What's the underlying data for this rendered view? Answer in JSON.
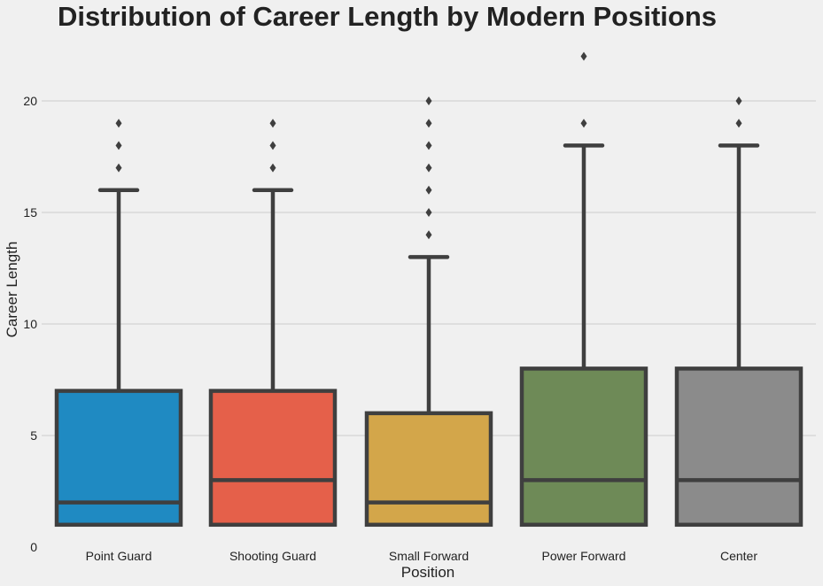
{
  "chart_data": {
    "type": "box",
    "title": "Distribution of Career Length by Modern Positions",
    "xlabel": "Position",
    "ylabel": "Career Length",
    "ylim": [
      0,
      22.5
    ],
    "yticks": [
      0,
      5,
      10,
      15,
      20
    ],
    "grid": true,
    "categories": [
      "Point Guard",
      "Shooting Guard",
      "Small Forward",
      "Power Forward",
      "Center"
    ],
    "boxes": [
      {
        "category": "Point Guard",
        "color": "#1f8ac2",
        "whisker_low": 1,
        "q1": 1,
        "median": 2,
        "q3": 7,
        "whisker_high": 16,
        "outliers": [
          17,
          18,
          19
        ]
      },
      {
        "category": "Shooting Guard",
        "color": "#e5604a",
        "whisker_low": 1,
        "q1": 1,
        "median": 3,
        "q3": 7,
        "whisker_high": 16,
        "outliers": [
          17,
          18,
          19
        ]
      },
      {
        "category": "Small Forward",
        "color": "#d3a64a",
        "whisker_low": 1,
        "q1": 1,
        "median": 2,
        "q3": 6,
        "whisker_high": 13,
        "outliers": [
          14,
          15,
          16,
          17,
          18,
          19,
          20
        ]
      },
      {
        "category": "Power Forward",
        "color": "#6e8a57",
        "whisker_low": 1,
        "q1": 1,
        "median": 3,
        "q3": 8,
        "whisker_high": 18,
        "outliers": [
          19,
          22
        ]
      },
      {
        "category": "Center",
        "color": "#8b8b8b",
        "whisker_low": 1,
        "q1": 1,
        "median": 3,
        "q3": 8,
        "whisker_high": 18,
        "outliers": [
          19,
          20
        ]
      }
    ]
  }
}
